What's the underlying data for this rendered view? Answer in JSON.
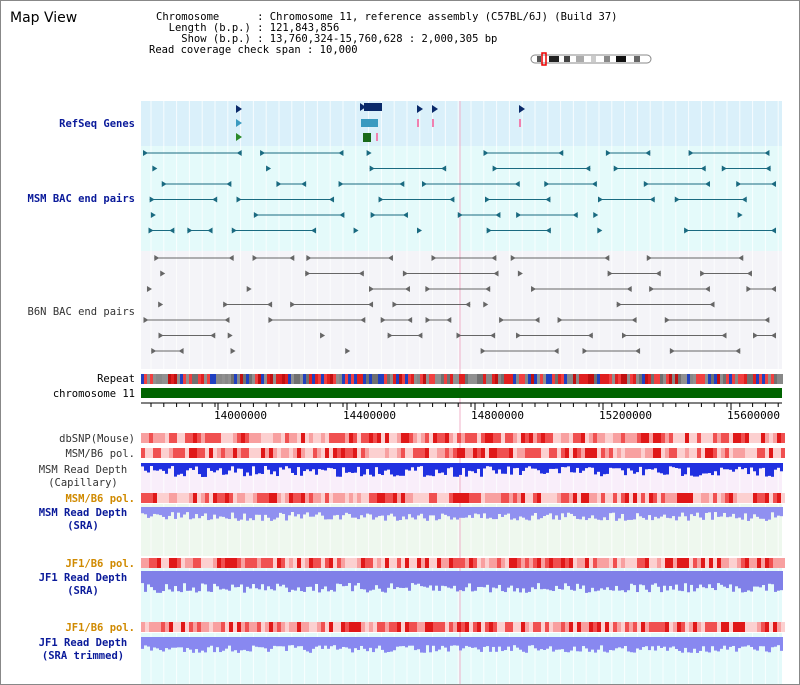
{
  "title": "Map View",
  "info": [
    "Chromosome      : Chromosome 11, reference assembly (C57BL/6J) (Build 37)",
    "  Length (b.p.) : 121,843,856",
    "    Show (b.p.) : 13,760,324-15,760,628 : 2,000,305 bp",
    "Read coverage check span : 10,000"
  ],
  "tracks": {
    "refseq": "RefSeq Genes",
    "msm_bac": "MSM BAC end pairs",
    "b6n_bac": "B6N BAC end pairs",
    "repeat": "Repeat",
    "chromosome": "chromosome 11",
    "dbsnp": "dbSNP(Mouse)",
    "msm_b6_pol_1": "MSM/B6 pol.",
    "msm_depth_cap": "MSM Read Depth",
    "msm_depth_cap_sub": "(Capillary)",
    "msm_b6_pol_2": "MSM/B6 pol.",
    "msm_depth_sra": "MSM Read Depth",
    "msm_depth_sra_sub": "(SRA)",
    "jf1_b6_pol_1": "JF1/B6 pol.",
    "jf1_depth_sra": "JF1 Read Depth",
    "jf1_depth_sra_sub": "(SRA)",
    "jf1_b6_pol_2": "JF1/B6 pol.",
    "jf1_depth_trim": "JF1 Read Depth",
    "jf1_depth_trim_sub": "(SRA trimmed)"
  },
  "axis_ticks": [
    "14000000",
    "14400000",
    "14800000",
    "15200000",
    "15600000"
  ],
  "colors": {
    "refseq_bg": "#daf0fa",
    "msm_bg": "#e4fafa",
    "b6n_bg": "#f4f4f8",
    "chrom_green": "#006400",
    "navy": "#0a1a9a",
    "orange": "#d08a00"
  }
}
